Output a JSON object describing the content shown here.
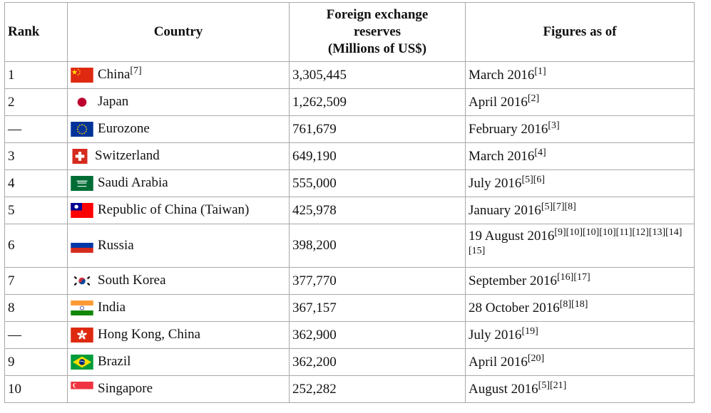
{
  "table": {
    "headers": {
      "rank": "Rank",
      "country": "Country",
      "reserves_line1": "Foreign exchange",
      "reserves_line2": "reserves",
      "reserves_line3": "(Millions of US$)",
      "date": "Figures as of"
    },
    "rows": [
      {
        "rank": "1",
        "flag": "china-flag-icon",
        "country": "China",
        "country_ref": "[7]",
        "reserves": "3,305,445",
        "date": "March 2016",
        "date_ref": "[1]"
      },
      {
        "rank": "2",
        "flag": "japan-flag-icon",
        "country": "Japan",
        "country_ref": "",
        "reserves": "1,262,509",
        "date": "April 2016",
        "date_ref": "[2]"
      },
      {
        "rank": "—",
        "flag": "eu-flag-icon",
        "country": "Eurozone",
        "country_ref": "",
        "reserves": "761,679",
        "date": "February 2016",
        "date_ref": "[3]"
      },
      {
        "rank": "3",
        "flag": "switzerland-flag-icon",
        "country": "Switzerland",
        "country_ref": "",
        "reserves": "649,190",
        "date": "March 2016",
        "date_ref": "[4]"
      },
      {
        "rank": "4",
        "flag": "saudi-arabia-flag-icon",
        "country": "Saudi Arabia",
        "country_ref": "",
        "reserves": "555,000",
        "date": "July 2016",
        "date_ref": "[5][6]"
      },
      {
        "rank": "5",
        "flag": "taiwan-flag-icon",
        "country": "Republic of China (Taiwan)",
        "country_ref": "",
        "reserves": "425,978",
        "date": "January 2016",
        "date_ref": "[5][7][8]"
      },
      {
        "rank": "6",
        "flag": "russia-flag-icon",
        "country": "Russia",
        "country_ref": "",
        "reserves": "398,200",
        "date": "19 August 2016",
        "date_ref": "[9][10][10][10][11][12][13][14][15]"
      },
      {
        "rank": "7",
        "flag": "south-korea-flag-icon",
        "country": "South Korea",
        "country_ref": "",
        "reserves": "377,770",
        "date": "September 2016",
        "date_ref": "[16][17]"
      },
      {
        "rank": "8",
        "flag": "india-flag-icon",
        "country": "India",
        "country_ref": "",
        "reserves": "367,157",
        "date": "28 October 2016",
        "date_ref": "[8][18]"
      },
      {
        "rank": "—",
        "flag": "hong-kong-flag-icon",
        "country": "Hong Kong, China",
        "country_ref": "",
        "reserves": "362,900",
        "date": "July 2016",
        "date_ref": "[19]"
      },
      {
        "rank": "9",
        "flag": "brazil-flag-icon",
        "country": "Brazil",
        "country_ref": "",
        "reserves": "362,200",
        "date": "April 2016",
        "date_ref": "[20]"
      },
      {
        "rank": "10",
        "flag": "singapore-flag-icon",
        "country": "Singapore",
        "country_ref": "",
        "reserves": "252,282",
        "date": "August 2016",
        "date_ref": "[5][21]"
      }
    ]
  }
}
